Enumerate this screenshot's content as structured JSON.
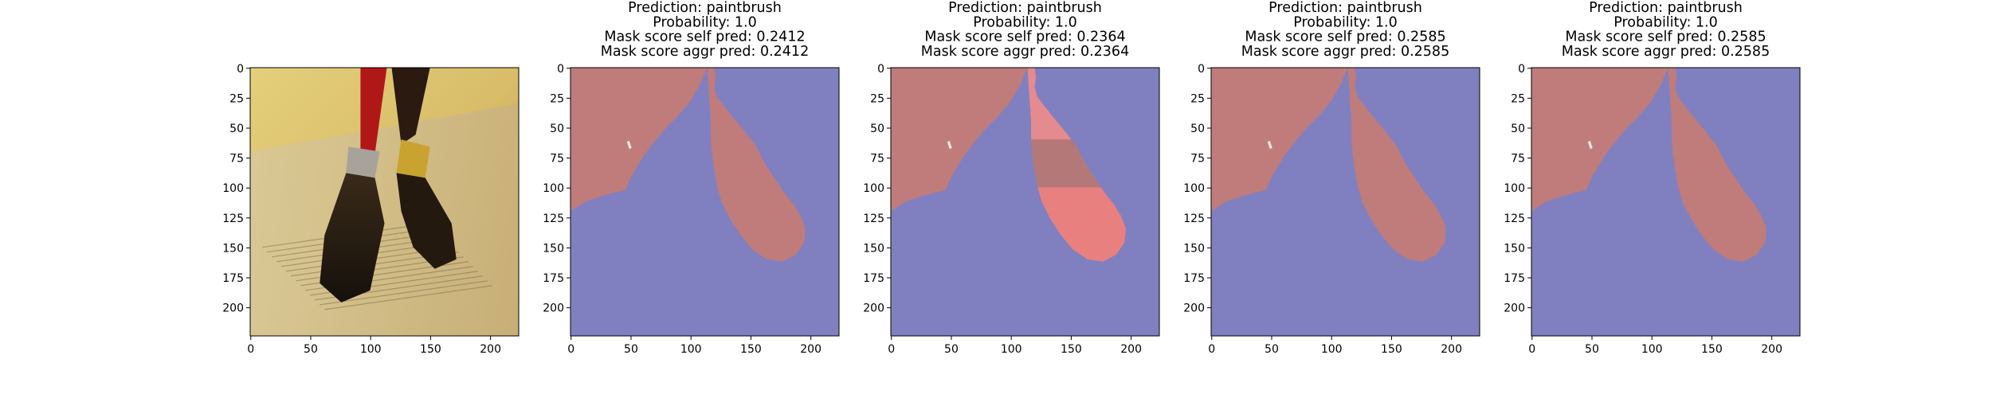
{
  "chart_data": [
    {
      "type": "image",
      "title_lines": [],
      "content": "photo",
      "x_ticks": [
        0,
        50,
        100,
        150,
        200
      ],
      "y_ticks": [
        0,
        25,
        50,
        75,
        100,
        125,
        150,
        175,
        200
      ],
      "xlim": [
        0,
        224
      ],
      "ylim": [
        224,
        0
      ]
    },
    {
      "type": "heatmap",
      "title_lines": [
        "Prediction: paintbrush",
        "Probability: 1.0",
        "Mask score self pred: 0.2412",
        "Mask score aggr pred: 0.2412"
      ],
      "content": "mask",
      "highlight": "none",
      "x_ticks": [
        0,
        50,
        100,
        150,
        200
      ],
      "y_ticks": [
        0,
        25,
        50,
        75,
        100,
        125,
        150,
        175,
        200
      ],
      "xlim": [
        0,
        224
      ],
      "ylim": [
        224,
        0
      ]
    },
    {
      "type": "heatmap",
      "title_lines": [
        "Prediction: paintbrush",
        "Probability: 1.0",
        "Mask score self pred: 0.2364",
        "Mask score aggr pred: 0.2364"
      ],
      "content": "mask",
      "highlight": "brush-graded",
      "x_ticks": [
        0,
        50,
        100,
        150,
        200
      ],
      "y_ticks": [
        0,
        25,
        50,
        75,
        100,
        125,
        150,
        175,
        200
      ],
      "xlim": [
        0,
        224
      ],
      "ylim": [
        224,
        0
      ]
    },
    {
      "type": "heatmap",
      "title_lines": [
        "Prediction: paintbrush",
        "Probability: 1.0",
        "Mask score self pred: 0.2585",
        "Mask score aggr pred: 0.2585"
      ],
      "content": "mask",
      "highlight": "none",
      "x_ticks": [
        0,
        50,
        100,
        150,
        200
      ],
      "y_ticks": [
        0,
        25,
        50,
        75,
        100,
        125,
        150,
        175,
        200
      ],
      "xlim": [
        0,
        224
      ],
      "ylim": [
        224,
        0
      ]
    },
    {
      "type": "heatmap",
      "title_lines": [
        "Prediction: paintbrush",
        "Probability: 1.0",
        "Mask score self pred: 0.2585",
        "Mask score aggr pred: 0.2585"
      ],
      "content": "mask",
      "highlight": "none",
      "x_ticks": [
        0,
        50,
        100,
        150,
        200
      ],
      "y_ticks": [
        0,
        25,
        50,
        75,
        100,
        125,
        150,
        175,
        200
      ],
      "xlim": [
        0,
        224
      ],
      "ylim": [
        224,
        0
      ]
    }
  ],
  "colors": {
    "background_region": "#8080c0",
    "foreground_region": "#c07b7b",
    "highlight_light": "#e58a8e",
    "highlight_strong": "#e88080",
    "highlight_mid": "#b57878"
  }
}
